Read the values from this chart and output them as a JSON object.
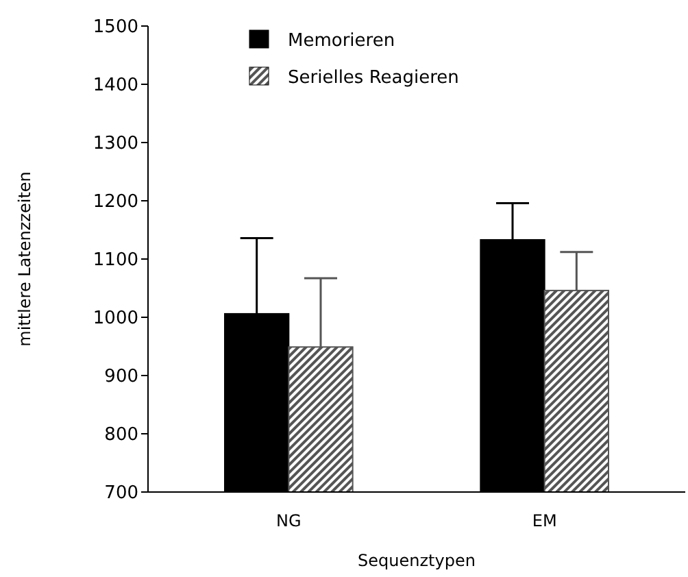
{
  "chart_data": {
    "type": "bar",
    "xlabel": "Sequenztypen",
    "ylabel": "mittlere Latenzzeiten",
    "categories": [
      "NG",
      "EM"
    ],
    "series": [
      {
        "name": "Memorieren",
        "color": "#000000",
        "values": [
          1006,
          1133
        ],
        "errors": [
          [
            1006,
            1136
          ],
          [
            1133,
            1196
          ]
        ]
      },
      {
        "name": "Serielles Reagieren",
        "color": "#555555",
        "values": [
          949,
          1046
        ],
        "errors": [
          [
            949,
            1067
          ],
          [
            1046,
            1112
          ]
        ]
      }
    ],
    "ylim": [
      700,
      1500
    ],
    "yticks": [
      700,
      800,
      900,
      1000,
      1100,
      1200,
      1300,
      1400,
      1500
    ],
    "legend": "top"
  }
}
